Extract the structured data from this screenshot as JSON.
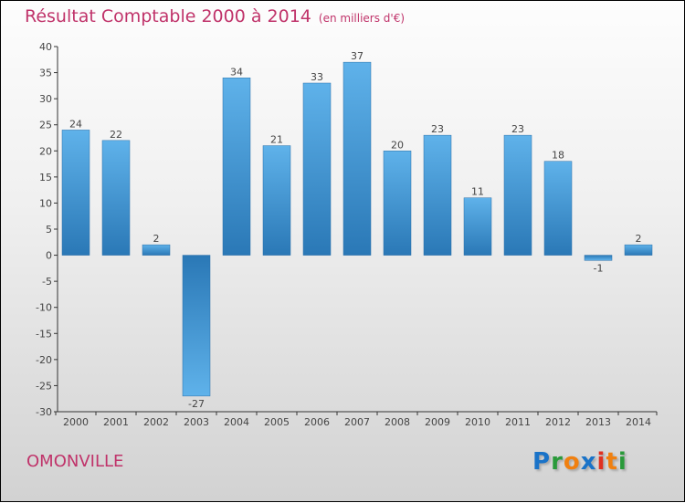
{
  "chart_data": {
    "type": "bar",
    "title": "Résultat Comptable 2000 à 2014",
    "subtitle": "(en milliers d'€)",
    "categories": [
      "2000",
      "2001",
      "2002",
      "2003",
      "2004",
      "2005",
      "2006",
      "2007",
      "2008",
      "2009",
      "2010",
      "2011",
      "2012",
      "2013",
      "2014"
    ],
    "values": [
      24,
      22,
      2,
      -27,
      34,
      21,
      33,
      37,
      20,
      23,
      11,
      23,
      18,
      -1,
      2
    ],
    "ylim": [
      -30,
      40
    ],
    "yticks": [
      40,
      35,
      30,
      25,
      20,
      15,
      10,
      5,
      0,
      -5,
      -10,
      -15,
      -20,
      -25,
      -30
    ],
    "xlabel": "",
    "ylabel": "",
    "grid": false
  },
  "town": "OMONVILLE",
  "logo": "Proxiti",
  "colors": {
    "title": "#c0336a",
    "bar_top": "#5fb2ea",
    "bar_bottom": "#2a78b6"
  }
}
